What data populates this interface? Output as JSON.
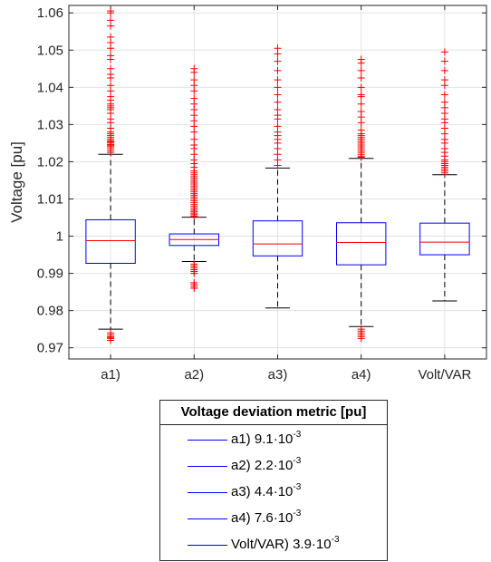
{
  "chart_data": {
    "type": "box",
    "ylabel": "Voltage [pu]",
    "ylim": [
      0.967,
      1.062
    ],
    "yticks": [
      "0.97",
      "0.98",
      "0.99",
      "1",
      "1.01",
      "1.02",
      "1.03",
      "1.04",
      "1.05",
      "1.06"
    ],
    "yticks_values": [
      0.97,
      0.98,
      0.99,
      1.0,
      1.01,
      1.02,
      1.03,
      1.04,
      1.05,
      1.06
    ],
    "grid": true,
    "box_color": "#0000ff",
    "median_color": "#ff0000",
    "outlier_color": "#ff0000",
    "whisker_color": "#000000",
    "categories": [
      "a1)",
      "a2)",
      "a3)",
      "a4)",
      "Volt/VAR"
    ],
    "boxes": [
      {
        "category": "a1)",
        "whisker_low": 0.975,
        "q1": 0.9927,
        "median": 0.9988,
        "q3": 1.0044,
        "whisker_high": 1.022,
        "outliers_high": [
          1.0225,
          1.023,
          1.0235,
          1.024,
          1.0243,
          1.0246,
          1.025,
          1.0253,
          1.0256,
          1.026,
          1.0265,
          1.027,
          1.0275,
          1.028,
          1.029,
          1.0305,
          1.0315,
          1.033,
          1.034,
          1.0345,
          1.035,
          1.0355,
          1.0365,
          1.0375,
          1.039,
          1.0405,
          1.0425,
          1.0435,
          1.045,
          1.0475,
          1.0485,
          1.0505,
          1.052,
          1.0535,
          1.0565,
          1.058,
          1.06,
          1.0605
        ],
        "outliers_low": [
          0.974,
          0.9735,
          0.973,
          0.9728,
          0.9725,
          0.972
        ]
      },
      {
        "category": "a2)",
        "whisker_low": 0.9932,
        "q1": 0.9975,
        "median": 0.9991,
        "q3": 1.0006,
        "whisker_high": 1.0051,
        "outliers_high": [
          1.0054,
          1.0058,
          1.0062,
          1.0066,
          1.007,
          1.0075,
          1.008,
          1.0085,
          1.009,
          1.0095,
          1.01,
          1.0105,
          1.011,
          1.0115,
          1.012,
          1.0125,
          1.013,
          1.0135,
          1.014,
          1.0145,
          1.015,
          1.0155,
          1.016,
          1.0165,
          1.017,
          1.0175,
          1.0185,
          1.0195,
          1.0205,
          1.022,
          1.0235,
          1.0245,
          1.026,
          1.028,
          1.0295,
          1.031,
          1.0325,
          1.034,
          1.0355,
          1.037,
          1.039,
          1.0405,
          1.042,
          1.044,
          1.045
        ],
        "outliers_low": [
          0.9925,
          0.992,
          0.9915,
          0.991,
          0.9905,
          0.99,
          0.9875,
          0.987,
          0.9865,
          0.986
        ]
      },
      {
        "category": "a3)",
        "whisker_low": 0.9807,
        "q1": 0.9947,
        "median": 0.9979,
        "q3": 1.0041,
        "whisker_high": 1.0183,
        "outliers_high": [
          1.019,
          1.0205,
          1.022,
          1.0235,
          1.025,
          1.026,
          1.027,
          1.028,
          1.0295,
          1.0315,
          1.0325,
          1.034,
          1.036,
          1.038,
          1.04,
          1.042,
          1.0445,
          1.047,
          1.049,
          1.0505
        ],
        "outliers_low": []
      },
      {
        "category": "a4)",
        "whisker_low": 0.9757,
        "q1": 0.9923,
        "median": 0.9983,
        "q3": 1.0036,
        "whisker_high": 1.0209,
        "outliers_high": [
          1.0212,
          1.0215,
          1.022,
          1.0225,
          1.023,
          1.0235,
          1.024,
          1.0245,
          1.025,
          1.0255,
          1.026,
          1.0265,
          1.027,
          1.0275,
          1.0285,
          1.0305,
          1.032,
          1.0335,
          1.0355,
          1.0375,
          1.038,
          1.04,
          1.0425,
          1.0445,
          1.0465,
          1.0475
        ],
        "outliers_low": [
          0.975,
          0.9745,
          0.974,
          0.9735,
          0.973,
          0.9725
        ]
      },
      {
        "category": "Volt/VAR",
        "whisker_low": 0.9826,
        "q1": 0.995,
        "median": 0.9984,
        "q3": 1.0035,
        "whisker_high": 1.0165,
        "outliers_high": [
          1.017,
          1.0175,
          1.018,
          1.0185,
          1.019,
          1.0195,
          1.02,
          1.0205,
          1.0215,
          1.0225,
          1.0235,
          1.025,
          1.026,
          1.0275,
          1.029,
          1.0305,
          1.0315,
          1.033,
          1.0345,
          1.036,
          1.038,
          1.0405,
          1.042,
          1.0445,
          1.047,
          1.0495
        ],
        "outliers_low": []
      }
    ]
  },
  "legend": {
    "title": "Voltage deviation metric [pu]",
    "items": [
      {
        "label": "a1) 9.1·10",
        "exp": "-3"
      },
      {
        "label": "a2) 2.2·10",
        "exp": "-3"
      },
      {
        "label": "a3) 4.4·10",
        "exp": "-3"
      },
      {
        "label": "a4) 7.6·10",
        "exp": "-3"
      },
      {
        "label": "Volt/VAR) 3.9·10",
        "exp": "-3"
      }
    ]
  }
}
